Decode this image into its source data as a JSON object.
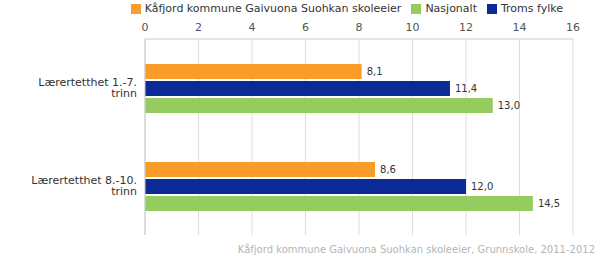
{
  "chart_data": {
    "type": "bar",
    "orientation": "horizontal",
    "categories": [
      "Lærertetthet 1.-7. trinn",
      "Lærertetthet 8.-10. trinn"
    ],
    "series": [
      {
        "name": "Kåfjord kommune Gaivuona Suohkan skoleeier",
        "color": "#f99c28",
        "values": [
          8.1,
          8.6
        ],
        "value_labels": [
          "8,1",
          "8,6"
        ]
      },
      {
        "name": "Troms fylke",
        "color": "#0c2a95",
        "values": [
          11.4,
          12.0
        ],
        "value_labels": [
          "11,4",
          "12,0"
        ]
      },
      {
        "name": "Nasjonalt",
        "color": "#95cc5f",
        "values": [
          13.0,
          14.5
        ],
        "value_labels": [
          "13,0",
          "14,5"
        ]
      }
    ],
    "xlim": [
      0,
      16
    ],
    "xticks": [
      0,
      2,
      4,
      6,
      8,
      10,
      12,
      14,
      16
    ],
    "grid": true,
    "data_labels": true,
    "legend": "top",
    "annotations": [
      "Kåfjord kommune Gaivuona Suohkan skoleeier, Grunnskole, 2011-2012"
    ]
  }
}
